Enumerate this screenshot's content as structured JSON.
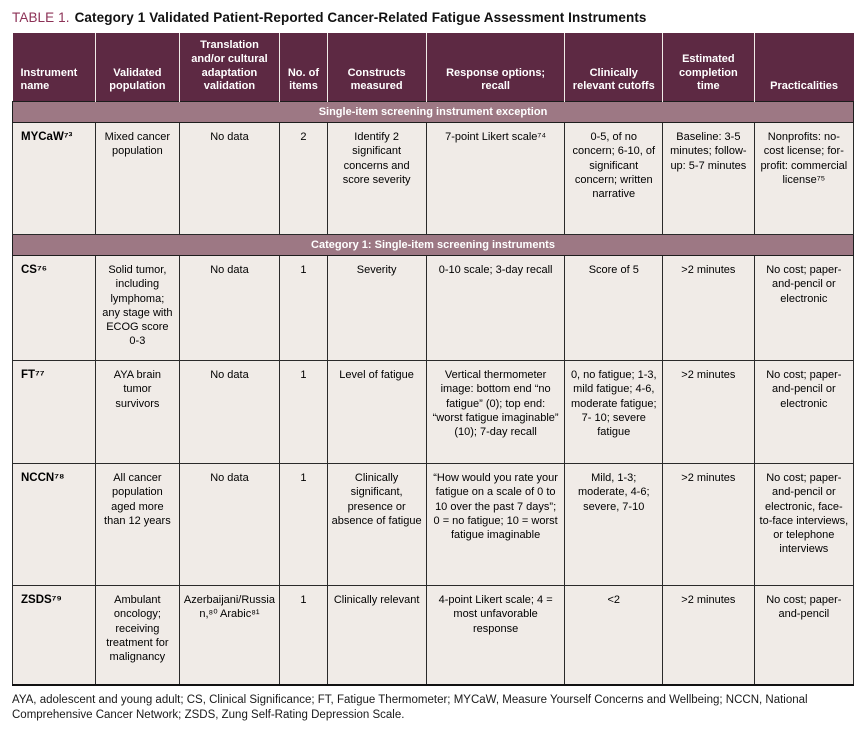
{
  "title": {
    "label": "TABLE 1.",
    "text": "Category 1 Validated Patient-Reported Cancer-Related Fatigue Assessment Instruments"
  },
  "colors": {
    "header_bg": "#5d2943",
    "band_bg": "#9d7884",
    "cell_bg": "#f0ebe7",
    "title_accent": "#8c3156"
  },
  "table": {
    "columns": [
      "Instrument name",
      "Validated population",
      "Translation and/or cultural adaptation validation",
      "No. of items",
      "Constructs measured",
      "Response options; recall",
      "Clinically relevant cutoffs",
      "Estimated completion time",
      "Practicalities"
    ],
    "sections": [
      {
        "band": "Single-item screening instrument exception",
        "rows": [
          {
            "cells": [
              "MYCaW⁷³",
              "Mixed cancer population",
              "No data",
              "2",
              "Identify 2 significant concerns and score severity",
              "7-point Likert scale⁷⁴",
              "0-5, of no concern; 6-10, of significant concern; written narrative",
              "Baseline: 3-5 minutes; follow-up: 5-7 minutes",
              "Nonprofits: no-cost license; for-profit: commercial license⁷⁵"
            ]
          }
        ]
      },
      {
        "band": "Category 1: Single-item screening instruments",
        "rows": [
          {
            "cells": [
              "CS⁷⁶",
              "Solid tumor, including lymphoma; any stage with ECOG score 0-3",
              "No data",
              "1",
              "Severity",
              "0-10 scale; 3-day recall",
              "Score of 5",
              ">2 minutes",
              "No cost; paper-and-pencil or electronic"
            ]
          },
          {
            "cells": [
              "FT⁷⁷",
              "AYA brain tumor survivors",
              "No data",
              "1",
              "Level of fatigue",
              "Vertical thermometer image: bottom end “no fatigue” (0); top end: “worst fatigue imaginable” (10); 7-day recall",
              "0, no fatigue; 1-3, mild fatigue; 4-6, moderate fatigue; 7- 10; severe fatigue",
              ">2 minutes",
              "No cost; paper-and-pencil or electronic"
            ]
          },
          {
            "cells": [
              "NCCN⁷⁸",
              "All cancer population aged more than 12 years",
              "No data",
              "1",
              "Clinically significant, presence or absence of fatigue",
              "“How would you rate your fatigue on a scale of 0 to 10 over the past 7 days”; 0 = no fatigue; 10 = worst fatigue imaginable",
              "Mild, 1-3; moderate, 4-6; severe, 7-10",
              ">2 minutes",
              "No cost; paper-and-pencil or electronic, face-to-face interviews, or telephone interviews"
            ]
          },
          {
            "cells": [
              "ZSDS⁷⁹",
              "Ambulant oncology; receiving treatment for malignancy",
              "Azerbaijani/Russian,⁸⁰ Arabic⁸¹",
              "1",
              "Clinically relevant",
              "4-point Likert scale; 4 = most unfavorable response",
              "<2",
              ">2 minutes",
              "No cost; paper-and-pencil"
            ]
          }
        ]
      }
    ]
  },
  "footnote": "AYA, adolescent and young adult; CS, Clinical Significance; FT, Fatigue Thermometer; MYCaW, Measure Yourself Concerns and Wellbeing; NCCN, National Comprehensive Cancer Network; ZSDS, Zung Self-Rating Depression Scale."
}
